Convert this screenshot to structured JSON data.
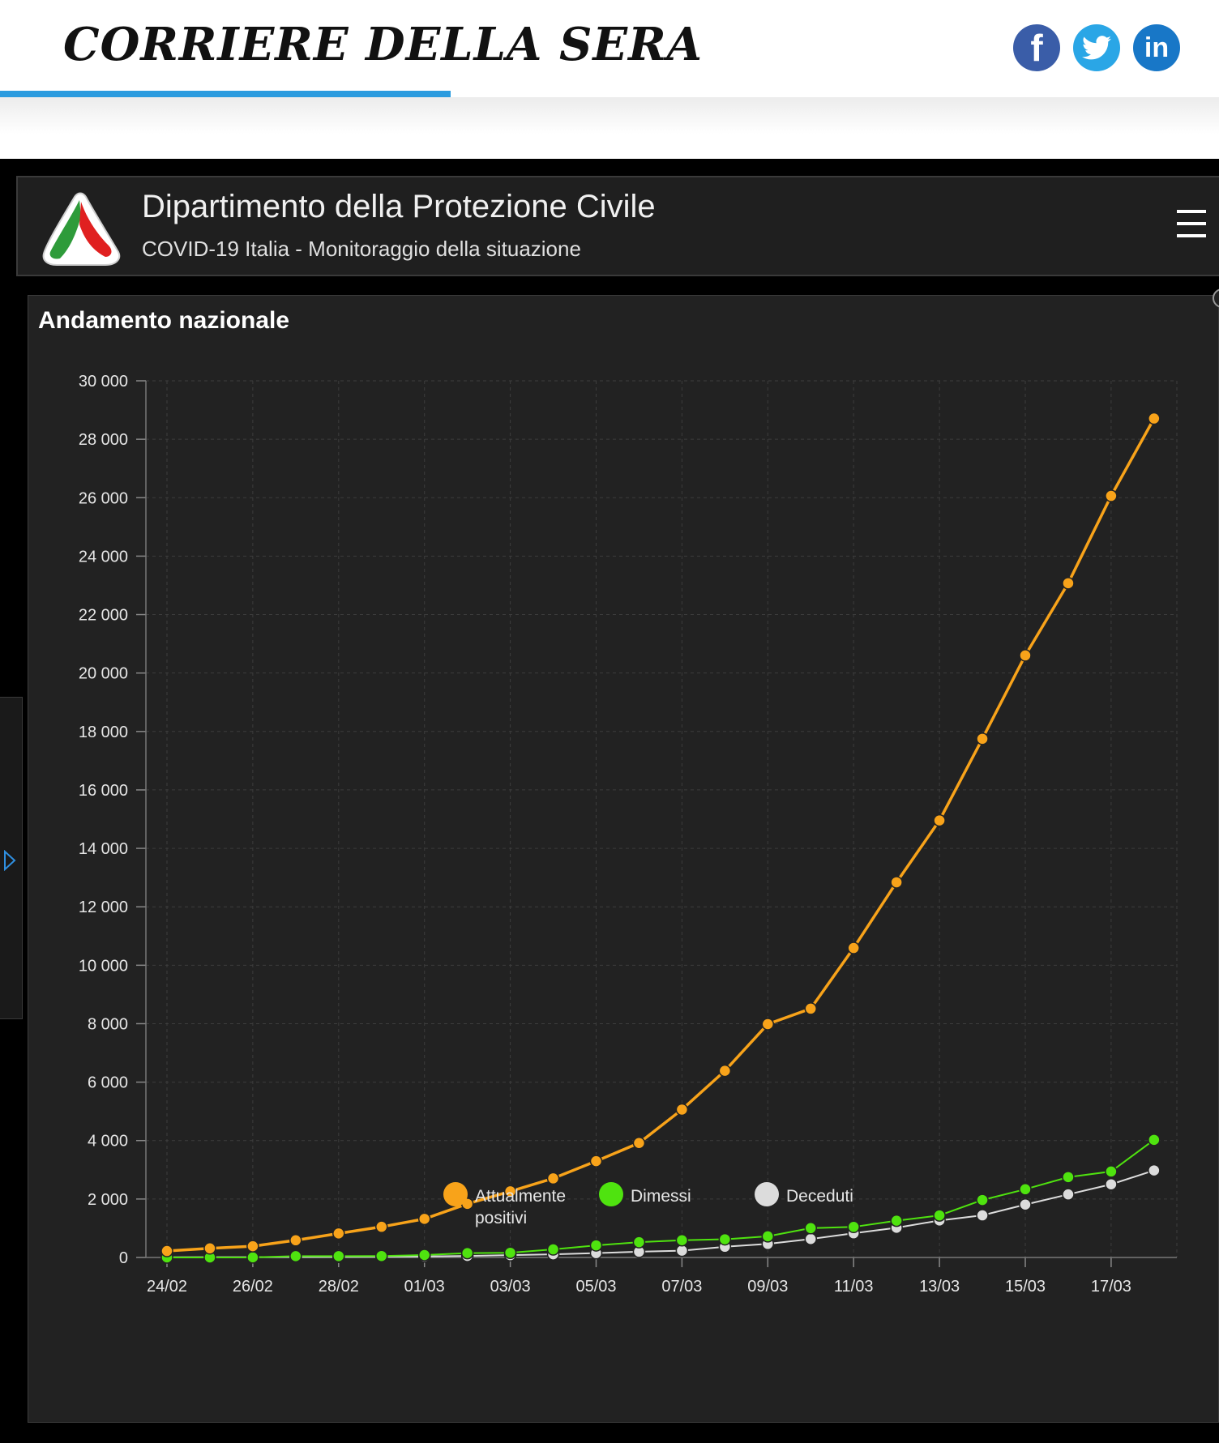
{
  "header": {
    "logo_text": "CORRIERE DELLA SERA",
    "progress_fraction": 0.37,
    "social": [
      {
        "name": "facebook",
        "glyph": "f",
        "color": "#3a5da8"
      },
      {
        "name": "twitter",
        "glyph": "🐦",
        "color": "#2aa6e6"
      },
      {
        "name": "linkedin",
        "glyph": "in",
        "color": "#1877c7"
      }
    ]
  },
  "dashboard": {
    "title": "Dipartimento della Protezione Civile",
    "subtitle": "COVID-19 Italia - Monitoraggio della situazione",
    "panel_title": "Andamento nazionale"
  },
  "chart_data": {
    "type": "line",
    "categories": [
      "24/02",
      "25/02",
      "26/02",
      "27/02",
      "28/02",
      "29/02",
      "01/03",
      "02/03",
      "03/03",
      "04/03",
      "05/03",
      "06/03",
      "07/03",
      "08/03",
      "09/03",
      "10/03",
      "11/03",
      "12/03",
      "13/03",
      "14/03",
      "15/03",
      "16/03",
      "17/03",
      "18/03"
    ],
    "x_tick_labels": [
      "24/02",
      "26/02",
      "28/02",
      "01/03",
      "03/03",
      "05/03",
      "07/03",
      "09/03",
      "11/03",
      "13/03",
      "15/03",
      "17/03"
    ],
    "ylim": [
      0,
      30000
    ],
    "y_tick_labels": [
      "0",
      "2 000",
      "4 000",
      "6 000",
      "8 000",
      "10 000",
      "12 000",
      "14 000",
      "16 000",
      "18 000",
      "20 000",
      "22 000",
      "24 000",
      "26 000",
      "28 000",
      "30 000"
    ],
    "grid": true,
    "legend_position": "bottom",
    "series": [
      {
        "name": "Attualmente positivi",
        "color": "#f8a31a",
        "values": [
          221,
          311,
          385,
          588,
          821,
          1049,
          1320,
          1835,
          2262,
          2706,
          3296,
          3916,
          5061,
          6387,
          7985,
          8514,
          10590,
          12839,
          14955,
          17750,
          20603,
          23073,
          26062,
          28710
        ]
      },
      {
        "name": "Dimessi",
        "color": "#4fe30f",
        "values": [
          1,
          1,
          3,
          45,
          46,
          50,
          83,
          149,
          160,
          276,
          414,
          523,
          589,
          622,
          724,
          1004,
          1045,
          1258,
          1439,
          1966,
          2335,
          2749,
          2941,
          4025
        ]
      },
      {
        "name": "Deceduti",
        "color": "#dcdcdc",
        "values": [
          7,
          10,
          12,
          17,
          21,
          29,
          34,
          52,
          79,
          107,
          148,
          197,
          233,
          366,
          463,
          631,
          827,
          1016,
          1266,
          1441,
          1809,
          2158,
          2503,
          2978
        ]
      }
    ],
    "legend_labels": [
      {
        "line1": "Attualmente",
        "line2": "positivi"
      },
      {
        "line1": "Dimessi",
        "line2": ""
      },
      {
        "line1": "Deceduti",
        "line2": ""
      }
    ]
  }
}
